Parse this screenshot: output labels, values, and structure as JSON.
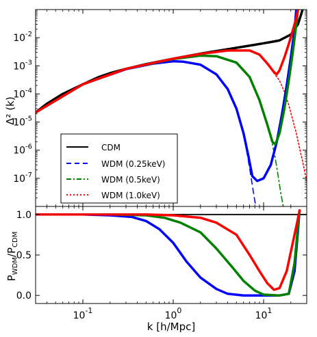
{
  "chart_data": [
    {
      "type": "line",
      "panel": "top",
      "xlabel": "",
      "ylabel": "Δ² (k)",
      "xscale": "log",
      "yscale": "log",
      "xlim": [
        0.03,
        30
      ],
      "ylim": [
        1e-08,
        0.1
      ],
      "x_tick_labels": [],
      "y_tick_labels": [
        "10-7",
        "10-6",
        "10-5",
        "10-4",
        "10-3",
        "10-2"
      ],
      "grid": false,
      "legend_position": "lower-left",
      "series": [
        {
          "name": "CDM",
          "color": "#000000",
          "style": "solid",
          "points": [
            [
              0.03,
              2.2e-05
            ],
            [
              0.04,
              4.5e-05
            ],
            [
              0.06,
              0.0001
            ],
            [
              0.1,
              0.00022
            ],
            [
              0.15,
              0.0004
            ],
            [
              0.2,
              0.00055
            ],
            [
              0.3,
              0.00078
            ],
            [
              0.5,
              0.00115
            ],
            [
              1,
              0.0018
            ],
            [
              2,
              0.0027
            ],
            [
              4,
              0.0039
            ],
            [
              8,
              0.0056
            ],
            [
              12,
              0.007
            ],
            [
              15,
              0.008
            ],
            [
              20,
              0.013
            ],
            [
              24,
              0.03
            ],
            [
              27,
              0.1
            ]
          ]
        },
        {
          "name": "WDM (0.25keV)",
          "color": "#0000ff",
          "style": "dashed",
          "points": [
            [
              0.03,
              2.2e-05
            ],
            [
              0.1,
              0.00022
            ],
            [
              0.3,
              0.00076
            ],
            [
              0.6,
              0.0012
            ],
            [
              1,
              0.00145
            ],
            [
              1.3,
              0.0014
            ],
            [
              2,
              0.0011
            ],
            [
              3,
              0.0005
            ],
            [
              4,
              0.00015
            ],
            [
              5,
              3e-05
            ],
            [
              6,
              4e-06
            ],
            [
              6.8,
              4e-07
            ],
            [
              7.3,
              1e-07
            ],
            [
              7.8,
              2.5e-08
            ],
            [
              8.2,
              1e-08
            ]
          ]
        },
        {
          "name": "WDM (0.5keV)",
          "color": "#008000",
          "style": "dashdot",
          "points": [
            [
              0.03,
              2.2e-05
            ],
            [
              0.1,
              0.00022
            ],
            [
              0.3,
              0.00078
            ],
            [
              1,
              0.00175
            ],
            [
              2,
              0.0023
            ],
            [
              3,
              0.0022
            ],
            [
              5,
              0.0013
            ],
            [
              7,
              0.0004
            ],
            [
              9,
              6e-05
            ],
            [
              11,
              8e-06
            ],
            [
              12.5,
              1.6e-06
            ],
            [
              13.5,
              5e-07
            ],
            [
              14.5,
              1.2e-07
            ],
            [
              15.5,
              3e-08
            ],
            [
              16.5,
              1e-08
            ]
          ]
        },
        {
          "name": "WDM (1.0keV)",
          "color": "#ff0000",
          "style": "dotted",
          "points": [
            [
              0.03,
              2.2e-05
            ],
            [
              0.1,
              0.00022
            ],
            [
              0.3,
              0.00078
            ],
            [
              1,
              0.0018
            ],
            [
              2,
              0.00265
            ],
            [
              4,
              0.0035
            ],
            [
              7,
              0.0035
            ],
            [
              9,
              0.0025
            ],
            [
              11,
              0.0012
            ],
            [
              13,
              0.00055
            ],
            [
              15,
              0.0003
            ],
            [
              17,
              0.00012
            ],
            [
              19,
              4e-05
            ],
            [
              21,
              1.2e-05
            ],
            [
              23,
              4e-06
            ],
            [
              25,
              1.2e-06
            ],
            [
              27,
              4e-07
            ],
            [
              29,
              1.3e-07
            ],
            [
              30,
              8e-08
            ]
          ]
        },
        {
          "name": "",
          "color": "#0000ff",
          "style": "solid",
          "points": [
            [
              0.03,
              2.2e-05
            ],
            [
              0.1,
              0.00022
            ],
            [
              0.3,
              0.00076
            ],
            [
              0.6,
              0.0012
            ],
            [
              1,
              0.00145
            ],
            [
              1.3,
              0.0014
            ],
            [
              2,
              0.0011
            ],
            [
              3,
              0.0005
            ],
            [
              4,
              0.00015
            ],
            [
              5,
              3e-05
            ],
            [
              6,
              4e-06
            ],
            [
              6.8,
              6e-07
            ],
            [
              7.5,
              1.2e-07
            ],
            [
              8.5,
              8e-08
            ],
            [
              10,
              1e-07
            ],
            [
              12,
              3e-07
            ],
            [
              14,
              2e-06
            ],
            [
              16,
              2e-05
            ],
            [
              18,
              0.0002
            ],
            [
              20,
              0.002
            ],
            [
              22,
              0.02
            ],
            [
              23,
              0.1
            ]
          ]
        },
        {
          "name": "",
          "color": "#008000",
          "style": "solid",
          "points": [
            [
              0.03,
              2.2e-05
            ],
            [
              0.1,
              0.00022
            ],
            [
              0.3,
              0.00078
            ],
            [
              1,
              0.00175
            ],
            [
              2,
              0.0023
            ],
            [
              3,
              0.0022
            ],
            [
              5,
              0.0013
            ],
            [
              7,
              0.0004
            ],
            [
              9,
              6e-05
            ],
            [
              11,
              8e-06
            ],
            [
              12.5,
              2e-06
            ],
            [
              13.5,
              1.6e-06
            ],
            [
              15,
              4e-06
            ],
            [
              17,
              3e-05
            ],
            [
              19,
              0.0003
            ],
            [
              21,
              0.003
            ],
            [
              23,
              0.03
            ],
            [
              24,
              0.1
            ]
          ]
        },
        {
          "name": "",
          "color": "#ff0000",
          "style": "solid",
          "points": [
            [
              0.03,
              2.2e-05
            ],
            [
              0.1,
              0.00022
            ],
            [
              0.3,
              0.00078
            ],
            [
              1,
              0.0018
            ],
            [
              2,
              0.00265
            ],
            [
              4,
              0.0035
            ],
            [
              7,
              0.0035
            ],
            [
              9,
              0.0025
            ],
            [
              11,
              0.0012
            ],
            [
              13,
              0.0006
            ],
            [
              14,
              0.0005
            ],
            [
              15,
              0.0007
            ],
            [
              17,
              0.002
            ],
            [
              19,
              0.006
            ],
            [
              21,
              0.018
            ],
            [
              23,
              0.05
            ],
            [
              24,
              0.1
            ]
          ]
        }
      ]
    },
    {
      "type": "line",
      "panel": "bottom",
      "xlabel": "k [h/Mpc]",
      "ylabel": "PWDM/PCDM",
      "ylabel_main": "P",
      "ylabel_sub1": "WDM",
      "ylabel_sep": "/P",
      "ylabel_sub2": "CDM",
      "xscale": "log",
      "xlim": [
        0.03,
        30
      ],
      "ylim": [
        -0.1,
        1.1
      ],
      "x_tick_labels": [
        "10-1",
        "100",
        "101"
      ],
      "y_tick_labels": [
        "0.0",
        "0.5",
        "1.0"
      ],
      "grid": false,
      "series": [
        {
          "name": "",
          "color": "#000000",
          "style": "solid",
          "points": [
            [
              0.03,
              1.0
            ],
            [
              30,
              1.0
            ]
          ]
        },
        {
          "name": "",
          "color": "#0000ff",
          "style": "solid",
          "points": [
            [
              0.03,
              1.0
            ],
            [
              0.1,
              1.0
            ],
            [
              0.2,
              0.99
            ],
            [
              0.35,
              0.97
            ],
            [
              0.5,
              0.92
            ],
            [
              0.7,
              0.82
            ],
            [
              1,
              0.65
            ],
            [
              1.4,
              0.42
            ],
            [
              2,
              0.22
            ],
            [
              3,
              0.08
            ],
            [
              4,
              0.02
            ],
            [
              6,
              0.0
            ],
            [
              15,
              0.0
            ],
            [
              19,
              0.02
            ],
            [
              22,
              0.3
            ],
            [
              24,
              0.8
            ],
            [
              25,
              1.05
            ]
          ]
        },
        {
          "name": "",
          "color": "#008000",
          "style": "solid",
          "points": [
            [
              0.03,
              1.0
            ],
            [
              0.2,
              1.0
            ],
            [
              0.5,
              0.99
            ],
            [
              0.8,
              0.96
            ],
            [
              1.2,
              0.9
            ],
            [
              2,
              0.78
            ],
            [
              3,
              0.58
            ],
            [
              4.5,
              0.35
            ],
            [
              6,
              0.18
            ],
            [
              8,
              0.06
            ],
            [
              10,
              0.01
            ],
            [
              15,
              0.0
            ],
            [
              19,
              0.02
            ],
            [
              22,
              0.4
            ],
            [
              24,
              0.85
            ],
            [
              25,
              1.05
            ]
          ]
        },
        {
          "name": "",
          "color": "#ff0000",
          "style": "solid",
          "points": [
            [
              0.03,
              1.0
            ],
            [
              0.5,
              1.0
            ],
            [
              1,
              0.99
            ],
            [
              2,
              0.96
            ],
            [
              3,
              0.9
            ],
            [
              5,
              0.75
            ],
            [
              7,
              0.5
            ],
            [
              9,
              0.3
            ],
            [
              11,
              0.15
            ],
            [
              13,
              0.07
            ],
            [
              15,
              0.09
            ],
            [
              18,
              0.3
            ],
            [
              21,
              0.65
            ],
            [
              24,
              0.95
            ],
            [
              25,
              1.05
            ]
          ]
        },
        {
          "name": "",
          "color": "#cc2222",
          "style": "dotted",
          "points": [
            [
              0.03,
              1.0
            ],
            [
              0.2,
              1.01
            ],
            [
              0.5,
              1.0
            ]
          ]
        }
      ]
    }
  ]
}
